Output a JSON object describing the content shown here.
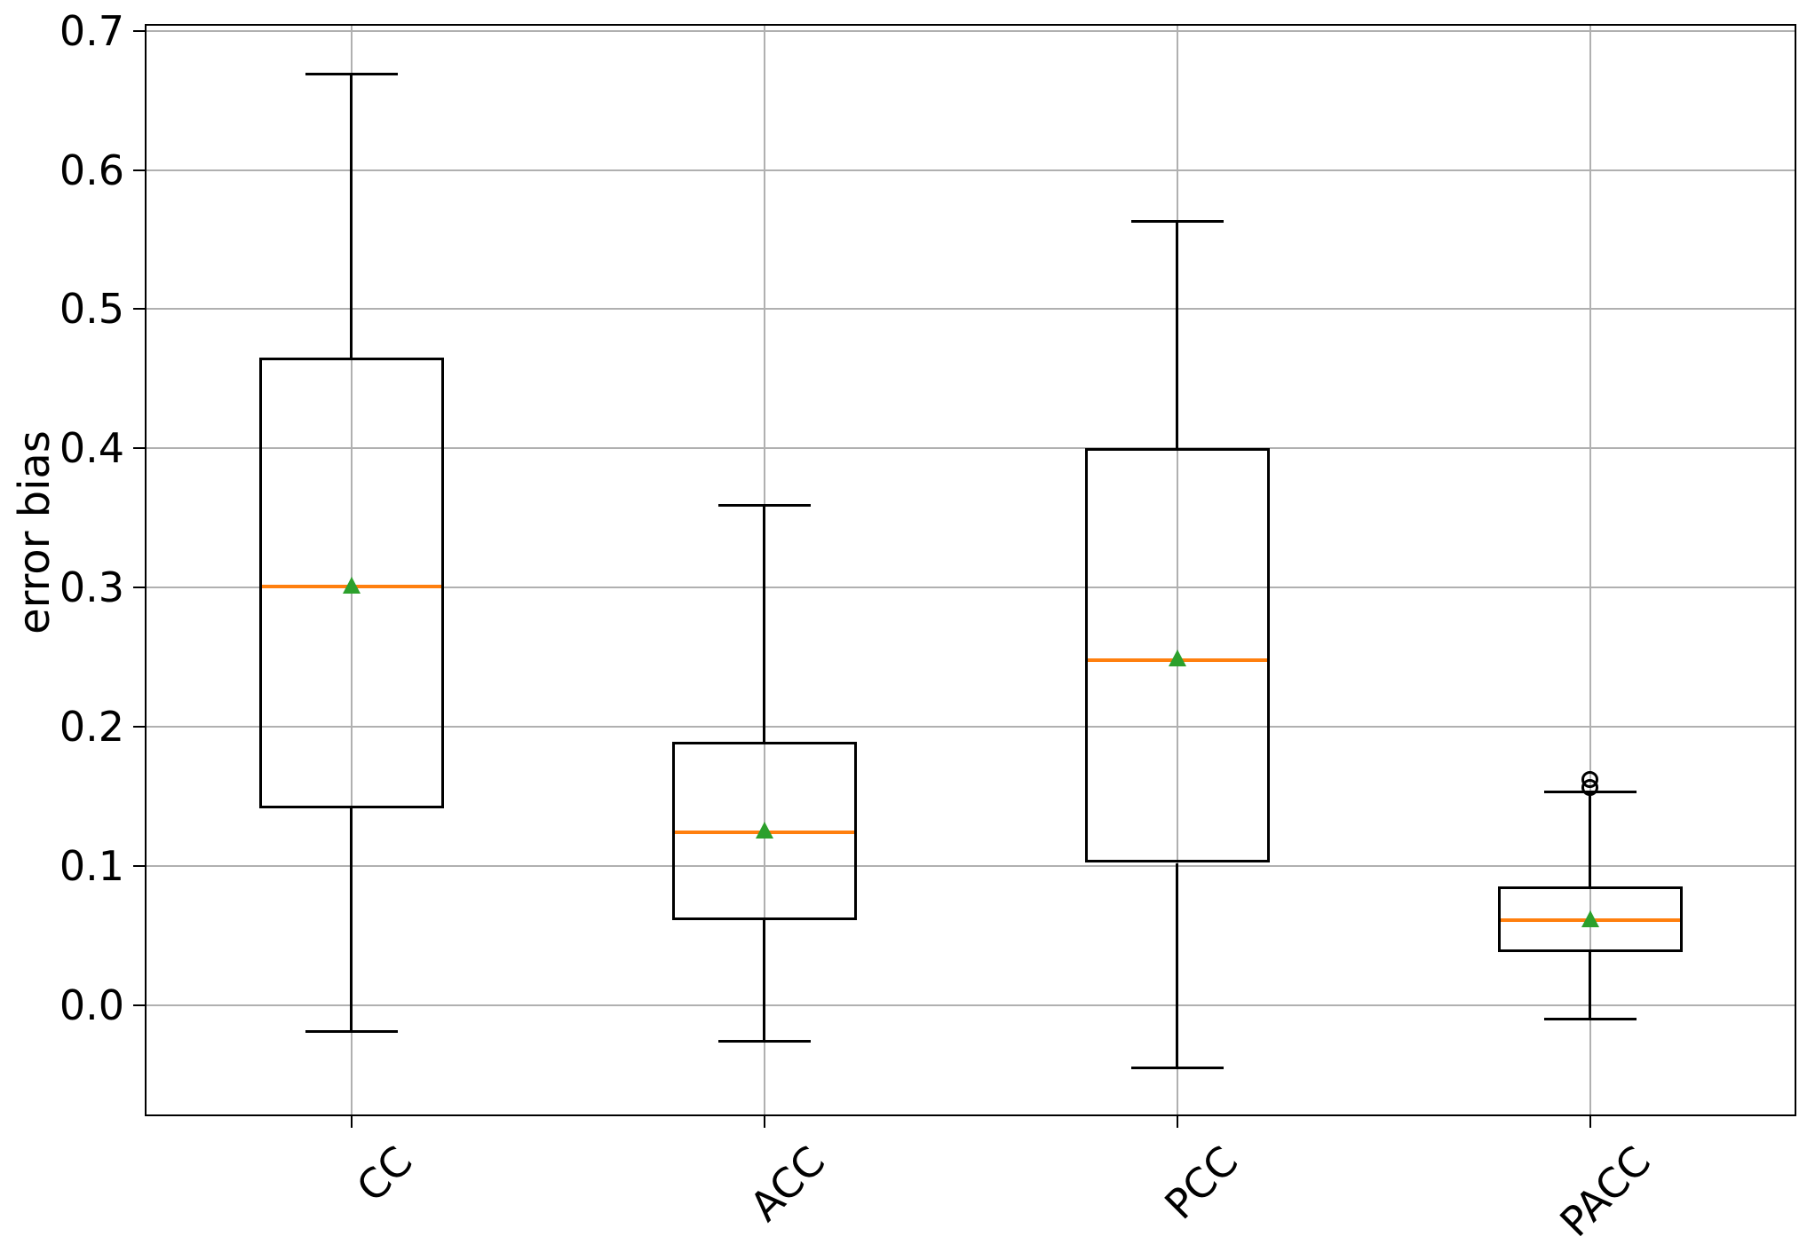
{
  "chart_data": {
    "type": "boxplot",
    "title": "",
    "xlabel": "",
    "ylabel": "error bias",
    "categories": [
      "CC",
      "ACC",
      "PCC",
      "PACC"
    ],
    "yticks": [
      0.0,
      0.1,
      0.2,
      0.3,
      0.4,
      0.5,
      0.6,
      0.7
    ],
    "ylim": [
      -0.08,
      0.705
    ],
    "grid": true,
    "legend_position": "none",
    "series": [
      {
        "label": "CC",
        "whisker_low": -0.019,
        "q1": 0.141,
        "median": 0.301,
        "q3": 0.465,
        "whisker_high": 0.669,
        "mean": 0.302,
        "outliers": []
      },
      {
        "label": "ACC",
        "whisker_low": -0.026,
        "q1": 0.061,
        "median": 0.124,
        "q3": 0.189,
        "whisker_high": 0.359,
        "mean": 0.126,
        "outliers": []
      },
      {
        "label": "PCC",
        "whisker_low": -0.045,
        "q1": 0.102,
        "median": 0.248,
        "q3": 0.4,
        "whisker_high": 0.563,
        "mean": 0.25,
        "outliers": []
      },
      {
        "label": "PACC",
        "whisker_low": -0.01,
        "q1": 0.038,
        "median": 0.061,
        "q3": 0.085,
        "whisker_high": 0.153,
        "mean": 0.062,
        "outliers": [
          0.156,
          0.162
        ]
      }
    ],
    "colors": {
      "median": "#ff7f0e",
      "mean": "#2ca02c",
      "line": "#000000",
      "grid": "#b0b0b0",
      "background": "#ffffff"
    }
  }
}
